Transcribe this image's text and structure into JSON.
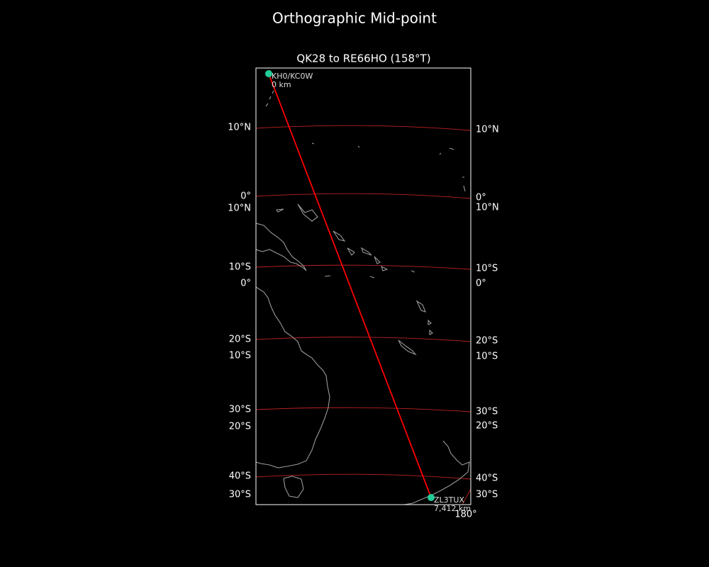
{
  "title": "Orthographic Mid-point",
  "map": {
    "title": "QK28 to RE66HO (158°T)",
    "left_labels": [
      "10°N",
      "0°",
      "10°N",
      "10°S",
      "0°",
      "20°S",
      "10°S",
      "30°S",
      "20°S",
      "40°S",
      "30°S"
    ],
    "right_labels": [
      "10°N",
      "0°",
      "10°N",
      "10°S",
      "0°",
      "20°S",
      "10°S",
      "30°S",
      "20°S",
      "40°S",
      "30°S"
    ],
    "start": {
      "call": "KH0/KC0W",
      "distance": "0 km"
    },
    "end": {
      "call": "ZL3TUX",
      "distance": "7,412 km"
    },
    "lon_label": "180°"
  }
}
